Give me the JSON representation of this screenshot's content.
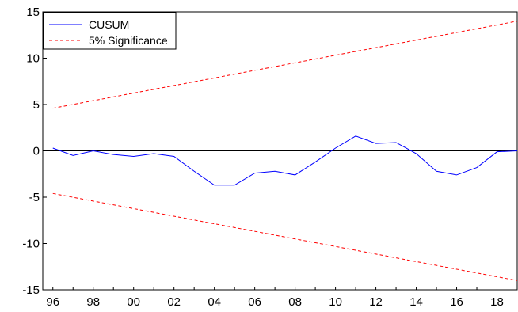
{
  "chart_data": {
    "type": "line",
    "title": "",
    "xlabel": "",
    "ylabel": "",
    "xlim": [
      1995.5,
      2019
    ],
    "ylim": [
      -15,
      15
    ],
    "x_ticks": [
      1996,
      1998,
      2000,
      2002,
      2004,
      2006,
      2008,
      2010,
      2012,
      2014,
      2016,
      2018
    ],
    "x_tick_labels": [
      "96",
      "98",
      "00",
      "02",
      "04",
      "06",
      "08",
      "10",
      "12",
      "14",
      "16",
      "18"
    ],
    "y_ticks": [
      -15,
      -10,
      -5,
      0,
      5,
      10,
      15
    ],
    "y_tick_labels": [
      "-15",
      "-10",
      "-5",
      "0",
      "5",
      "10",
      "15"
    ],
    "zero_line": true,
    "grid": false,
    "legend_position": "top-left",
    "series": [
      {
        "name": "CUSUM",
        "color": "#0000ff",
        "style": "solid",
        "x": [
          1996,
          1997,
          1998,
          1999,
          2000,
          2001,
          2002,
          2003,
          2004,
          2005,
          2006,
          2007,
          2008,
          2009,
          2010,
          2011,
          2012,
          2013,
          2014,
          2015,
          2016,
          2017,
          2018,
          2019
        ],
        "values": [
          0.3,
          -0.5,
          0.0,
          -0.4,
          -0.6,
          -0.3,
          -0.6,
          -2.2,
          -3.7,
          -3.7,
          -2.4,
          -2.2,
          -2.6,
          -1.2,
          0.3,
          1.6,
          0.8,
          0.9,
          -0.3,
          -2.2,
          -2.6,
          -1.8,
          -0.1,
          0.0
        ]
      },
      {
        "name": "5% Significance",
        "color": "#ff0000",
        "style": "dashed",
        "x": [
          1996,
          2019
        ],
        "values": [
          4.6,
          14.0
        ]
      },
      {
        "name": "",
        "color": "#ff0000",
        "style": "dashed",
        "x": [
          1996,
          2019
        ],
        "values": [
          -4.6,
          -14.0
        ]
      }
    ]
  }
}
